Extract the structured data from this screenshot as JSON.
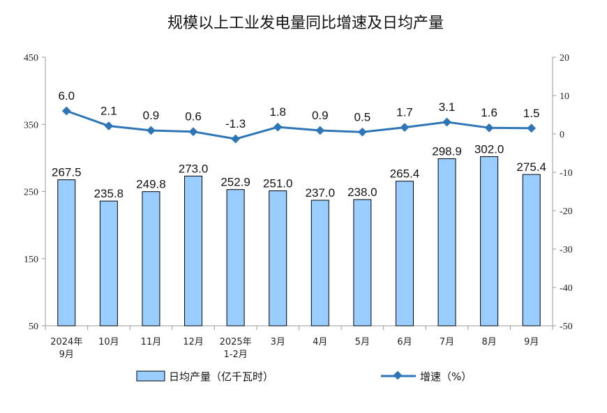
{
  "chart_data": {
    "type": "bar",
    "title": "规模以上工业发电量同比增速及日均产量",
    "categories": [
      [
        "2024年",
        "9月"
      ],
      [
        "10月"
      ],
      [
        "11月"
      ],
      [
        "12月"
      ],
      [
        "2025年",
        "1-2月"
      ],
      [
        "3月"
      ],
      [
        "4月"
      ],
      [
        "5月"
      ],
      [
        "6月"
      ],
      [
        "7月"
      ],
      [
        "8月"
      ],
      [
        "9月"
      ]
    ],
    "left_axis": {
      "ylim": [
        50,
        450
      ],
      "ticks": [
        50,
        150,
        250,
        350,
        450
      ]
    },
    "right_axis": {
      "ylim": [
        -50,
        20
      ],
      "ticks": [
        -50,
        -40,
        -30,
        -20,
        -10,
        0,
        10,
        20
      ]
    },
    "series": [
      {
        "name": "日均产量（亿千瓦时）",
        "type": "bar",
        "axis": "left",
        "color": "#99ccff",
        "values": [
          267.5,
          235.8,
          249.8,
          273.0,
          252.9,
          251.0,
          237.0,
          238.0,
          265.4,
          298.9,
          302.0,
          275.4
        ],
        "labels": [
          "267.5",
          "235.8",
          "249.8",
          "273.0",
          "252.9",
          "251.0",
          "237.0",
          "238.0",
          "265.4",
          "298.9",
          "302.0",
          "275.4"
        ]
      },
      {
        "name": "增速（%）",
        "type": "line",
        "axis": "right",
        "color": "#2e75b6",
        "values": [
          6.0,
          2.1,
          0.9,
          0.6,
          -1.3,
          1.8,
          0.9,
          0.5,
          1.7,
          3.1,
          1.6,
          1.5
        ],
        "labels": [
          "6.0",
          "2.1",
          "0.9",
          "0.6",
          "-1.3",
          "1.8",
          "0.9",
          "0.5",
          "1.7",
          "3.1",
          "1.6",
          "1.5"
        ]
      }
    ],
    "grid": false,
    "legend": "bottom"
  }
}
